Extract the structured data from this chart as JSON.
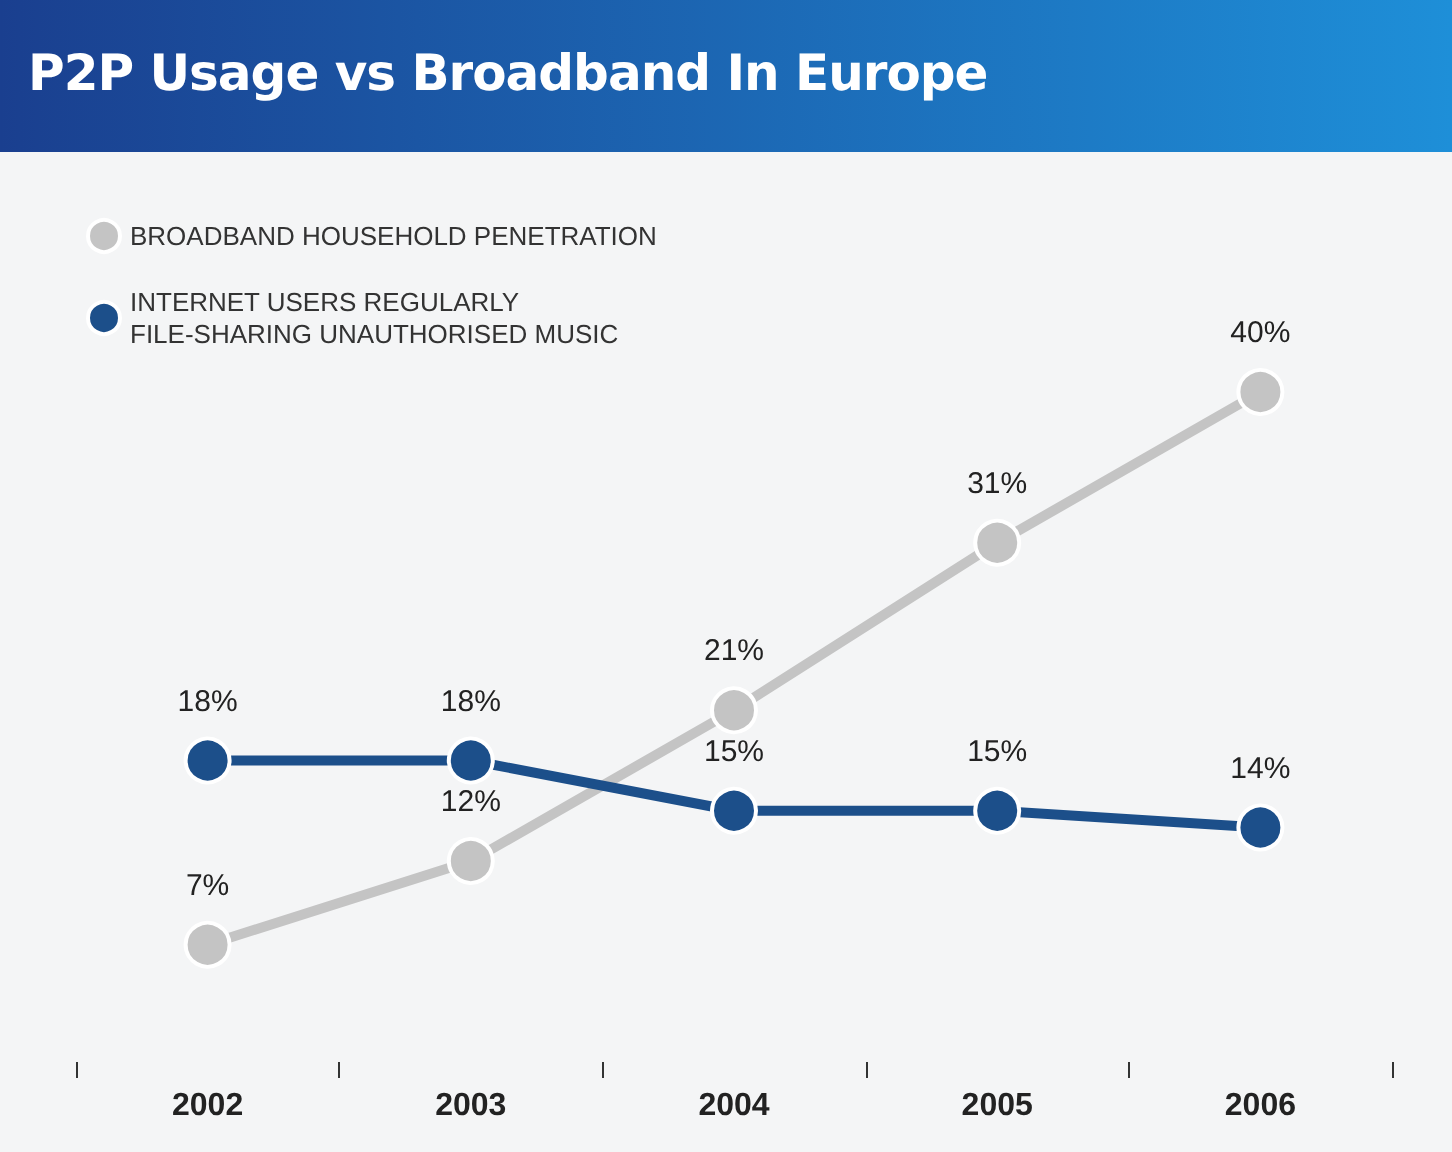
{
  "chart_data": {
    "type": "line",
    "title": "P2P Usage vs Broadband In Europe",
    "categories": [
      "2002",
      "2003",
      "2004",
      "2005",
      "2006"
    ],
    "series": [
      {
        "name": "BROADBAND HOUSEHOLD PENETRATION",
        "color": "#c4c4c4",
        "values": [
          7,
          12,
          21,
          31,
          40
        ],
        "value_labels": [
          "7%",
          "12%",
          "21%",
          "31%",
          "40%"
        ]
      },
      {
        "name": "INTERNET USERS REGULARLY FILE-SHARING UNAUTHORISED MUSIC",
        "color": "#1c4f8a",
        "values": [
          18,
          18,
          15,
          15,
          14
        ],
        "value_labels": [
          "18%",
          "18%",
          "15%",
          "15%",
          "14%"
        ]
      }
    ],
    "legend": "top left",
    "marker": "circle",
    "line_style": "solid",
    "grid": false
  }
}
